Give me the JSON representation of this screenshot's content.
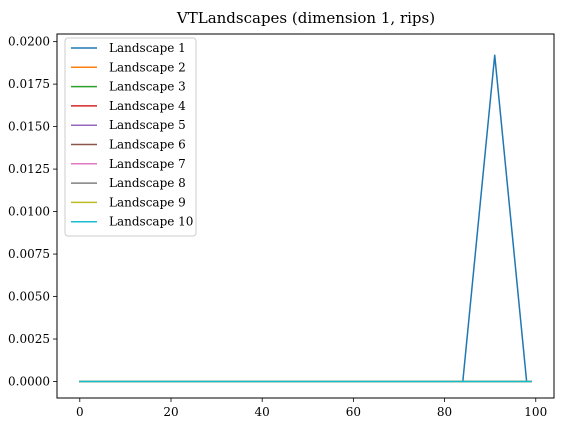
{
  "chart_data": {
    "type": "line",
    "title": "VTLandscapes (dimension 1, rips)",
    "xlabel": "",
    "ylabel": "",
    "xlim": [
      -5,
      104
    ],
    "ylim": [
      -0.00097,
      0.02045
    ],
    "x_ticks": [
      0,
      20,
      40,
      60,
      80,
      100
    ],
    "y_ticks": [
      0.0,
      0.0025,
      0.005,
      0.0075,
      0.01,
      0.0125,
      0.015,
      0.0175,
      0.02
    ],
    "x_tick_labels": [
      "0",
      "20",
      "40",
      "60",
      "80",
      "100"
    ],
    "y_tick_labels": [
      "0.0000",
      "0.0025",
      "0.0050",
      "0.0075",
      "0.0100",
      "0.0125",
      "0.0150",
      "0.0175",
      "0.0200"
    ],
    "grid": false,
    "legend_position": "top-left",
    "series": [
      {
        "name": "Landscape 1",
        "color": "#1f77b4",
        "x": [
          0,
          84,
          91,
          98,
          99
        ],
        "y": [
          0,
          0,
          0.0192,
          0,
          0
        ]
      },
      {
        "name": "Landscape 2",
        "color": "#ff7f0e",
        "x": [
          0,
          99
        ],
        "y": [
          0,
          0
        ]
      },
      {
        "name": "Landscape 3",
        "color": "#2ca02c",
        "x": [
          0,
          99
        ],
        "y": [
          0,
          0
        ]
      },
      {
        "name": "Landscape 4",
        "color": "#d62728",
        "x": [
          0,
          99
        ],
        "y": [
          0,
          0
        ]
      },
      {
        "name": "Landscape 5",
        "color": "#9467bd",
        "x": [
          0,
          99
        ],
        "y": [
          0,
          0
        ]
      },
      {
        "name": "Landscape 6",
        "color": "#8c564b",
        "x": [
          0,
          99
        ],
        "y": [
          0,
          0
        ]
      },
      {
        "name": "Landscape 7",
        "color": "#e377c2",
        "x": [
          0,
          99
        ],
        "y": [
          0,
          0
        ]
      },
      {
        "name": "Landscape 8",
        "color": "#7f7f7f",
        "x": [
          0,
          99
        ],
        "y": [
          0,
          0
        ]
      },
      {
        "name": "Landscape 9",
        "color": "#bcbd22",
        "x": [
          0,
          99
        ],
        "y": [
          0,
          0
        ]
      },
      {
        "name": "Landscape 10",
        "color": "#17becf",
        "x": [
          0,
          99
        ],
        "y": [
          0,
          0
        ]
      }
    ]
  }
}
